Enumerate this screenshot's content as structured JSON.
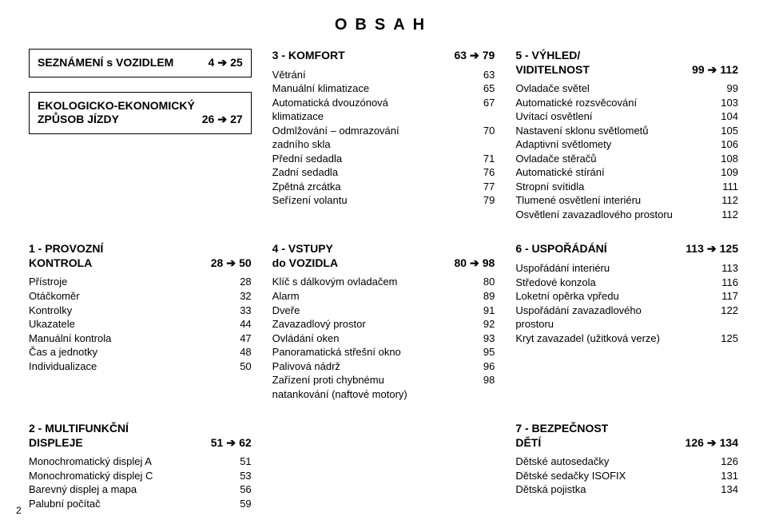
{
  "document_title": "OBSAH",
  "page_number": "2",
  "arrow_glyph": "➔",
  "cells": {
    "a1": {
      "boxed": true,
      "heading_title": "SEZNÁMENÍ s VOZIDLEM",
      "heading_range_from": "4",
      "heading_range_to": "25"
    },
    "a2": {
      "boxed": true,
      "heading_title": "EKOLOGICKO-EKONOMICKÝ\nZPŮSOB JÍZDY",
      "heading_range_from": "26",
      "heading_range_to": "27"
    },
    "b1": {
      "boxed": false,
      "heading_title": "3 - KOMFORT",
      "heading_range_from": "63",
      "heading_range_to": "79",
      "items": [
        {
          "label": "Větrání",
          "page": "63"
        },
        {
          "label": "Manuální klimatizace",
          "page": "65"
        },
        {
          "label": "Automatická dvouzónová\n  klimatizace",
          "page": "67"
        },
        {
          "label": "Odmlžování – odmrazování\n  zadního skla",
          "page": "70"
        },
        {
          "label": "Přední sedadla",
          "page": "71"
        },
        {
          "label": "Zadní sedadla",
          "page": "76"
        },
        {
          "label": "Zpětná zrcátka",
          "page": "77"
        },
        {
          "label": "Seřízení volantu",
          "page": "79"
        }
      ]
    },
    "c1": {
      "boxed": false,
      "heading_title": "5 - VÝHLED/\n      VIDITELNOST",
      "heading_range_from": "99",
      "heading_range_to": "112",
      "items": [
        {
          "label": "Ovladače světel",
          "page": "99"
        },
        {
          "label": "Automatické rozsvěcování",
          "page": "103"
        },
        {
          "label": "Uvítací osvětlení",
          "page": "104"
        },
        {
          "label": "Nastavení sklonu světlometů",
          "page": "105"
        },
        {
          "label": "Adaptivní světlomety",
          "page": "106"
        },
        {
          "label": "Ovladače stěračů",
          "page": "108"
        },
        {
          "label": "Automatické stírání",
          "page": "109"
        },
        {
          "label": "Stropní svítidla",
          "page": "111"
        },
        {
          "label": "Tlumené osvětlení interiéru",
          "page": "112"
        },
        {
          "label": "Osvětlení zavazadlového prostoru",
          "page": "112"
        }
      ]
    },
    "a3": {
      "boxed": false,
      "heading_title": "1 - PROVOZNÍ\n      KONTROLA",
      "heading_range_from": "28",
      "heading_range_to": "50",
      "items": [
        {
          "label": "Přístroje",
          "page": "28"
        },
        {
          "label": "Otáčkoměr",
          "page": "32"
        },
        {
          "label": "Kontrolky",
          "page": "33"
        },
        {
          "label": "Ukazatele",
          "page": "44"
        },
        {
          "label": "Manuální kontrola",
          "page": "47"
        },
        {
          "label": "Čas a jednotky",
          "page": "48"
        },
        {
          "label": "Individualizace",
          "page": "50"
        }
      ]
    },
    "b3": {
      "boxed": false,
      "heading_title": "4 - VSTUPY\n      do VOZIDLA",
      "heading_range_from": "80",
      "heading_range_to": "98",
      "items": [
        {
          "label": "Klíč s dálkovým ovladačem",
          "page": "80"
        },
        {
          "label": "Alarm",
          "page": "89"
        },
        {
          "label": "Dveře",
          "page": "91"
        },
        {
          "label": "Zavazadlový prostor",
          "page": "92"
        },
        {
          "label": "Ovládání oken",
          "page": "93"
        },
        {
          "label": "Panoramatická střešní okno",
          "page": "95"
        },
        {
          "label": "Palivová nádrž",
          "page": "96"
        },
        {
          "label": "Zařízení proti chybnému\n  natankování (naftové motory)",
          "page": "98"
        }
      ]
    },
    "c3": {
      "boxed": false,
      "heading_title": "6 - USPOŘÁDÁNÍ",
      "heading_range_from": "113",
      "heading_range_to": "125",
      "items": [
        {
          "label": "Uspořádání interiéru",
          "page": "113"
        },
        {
          "label": "Středové konzola",
          "page": "116"
        },
        {
          "label": "Loketní opěrka vpředu",
          "page": "117"
        },
        {
          "label": "Uspořádání zavazadlového\n  prostoru",
          "page": "122"
        },
        {
          "label": "Kryt zavazadel (užitková verze)",
          "page": "125"
        }
      ]
    },
    "a4": {
      "boxed": false,
      "heading_title": "2 - MULTIFUNKČNÍ\n      DISPLEJE",
      "heading_range_from": "51",
      "heading_range_to": "62",
      "items": [
        {
          "label": "Monochromatický displej A",
          "page": "51"
        },
        {
          "label": "Monochromatický displej C",
          "page": "53"
        },
        {
          "label": "Barevný displej a mapa",
          "page": "56"
        },
        {
          "label": "Palubní počítač",
          "page": "59"
        }
      ]
    },
    "c4": {
      "boxed": false,
      "heading_title": "7 - BEZPEČNOST\n      DĚTÍ",
      "heading_range_from": "126",
      "heading_range_to": "134",
      "items": [
        {
          "label": "Dětské autosedačky",
          "page": "126"
        },
        {
          "label": "Dětské sedačky ISOFIX",
          "page": "131"
        },
        {
          "label": "Dětská pojistka",
          "page": "134"
        }
      ]
    }
  }
}
